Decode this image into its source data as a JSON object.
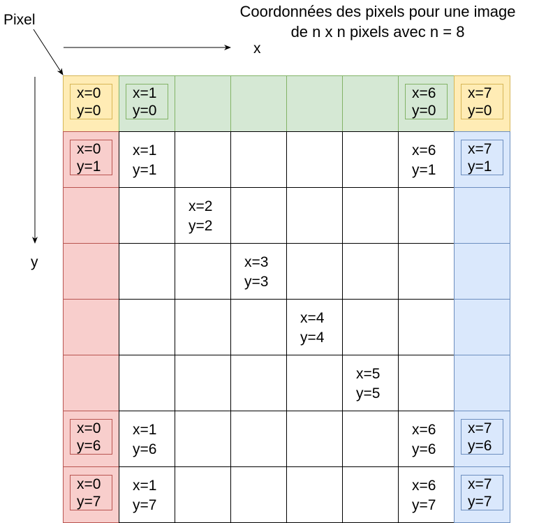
{
  "title": {
    "line1": "Coordonnées des pixels pour une image",
    "line2": "de n x n pixels avec n = 8"
  },
  "labels": {
    "pixel": "Pixel",
    "x_axis": "x",
    "y_axis": "y"
  },
  "grid": {
    "n": 8
  },
  "colors": {
    "top_corner_fill": "#ffecb5",
    "top_corner_stroke": "#d6b656",
    "top_row_fill": "#d5e8d4",
    "top_row_stroke": "#82b366",
    "left_column_fill": "#f8cecc",
    "left_column_stroke": "#b85450",
    "right_column_fill": "#dae8fc",
    "right_column_stroke": "#6c8ebf"
  },
  "cells": [
    {
      "col": 0,
      "row": 0,
      "x": "x=0",
      "y": "y=0",
      "boxed": true
    },
    {
      "col": 1,
      "row": 0,
      "x": "x=1",
      "y": "y=0",
      "boxed": true
    },
    {
      "col": 6,
      "row": 0,
      "x": "x=6",
      "y": "y=0",
      "boxed": true
    },
    {
      "col": 7,
      "row": 0,
      "x": "x=7",
      "y": "y=0",
      "boxed": true
    },
    {
      "col": 0,
      "row": 1,
      "x": "x=0",
      "y": "y=1",
      "boxed": true
    },
    {
      "col": 1,
      "row": 1,
      "x": "x=1",
      "y": "y=1",
      "boxed": false
    },
    {
      "col": 6,
      "row": 1,
      "x": "x=6",
      "y": "y=1",
      "boxed": false
    },
    {
      "col": 7,
      "row": 1,
      "x": "x=7",
      "y": "y=1",
      "boxed": true
    },
    {
      "col": 2,
      "row": 2,
      "x": "x=2",
      "y": "y=2",
      "boxed": false
    },
    {
      "col": 3,
      "row": 3,
      "x": "x=3",
      "y": "y=3",
      "boxed": false
    },
    {
      "col": 4,
      "row": 4,
      "x": "x=4",
      "y": "y=4",
      "boxed": false
    },
    {
      "col": 5,
      "row": 5,
      "x": "x=5",
      "y": "y=5",
      "boxed": false
    },
    {
      "col": 0,
      "row": 6,
      "x": "x=0",
      "y": "y=6",
      "boxed": true
    },
    {
      "col": 1,
      "row": 6,
      "x": "x=1",
      "y": "y=6",
      "boxed": false
    },
    {
      "col": 6,
      "row": 6,
      "x": "x=6",
      "y": "y=6",
      "boxed": false
    },
    {
      "col": 7,
      "row": 6,
      "x": "x=7",
      "y": "y=6",
      "boxed": true
    },
    {
      "col": 0,
      "row": 7,
      "x": "x=0",
      "y": "y=7",
      "boxed": true
    },
    {
      "col": 1,
      "row": 7,
      "x": "x=1",
      "y": "y=7",
      "boxed": false
    },
    {
      "col": 6,
      "row": 7,
      "x": "x=6",
      "y": "y=7",
      "boxed": false
    },
    {
      "col": 7,
      "row": 7,
      "x": "x=7",
      "y": "y=7",
      "boxed": true
    }
  ]
}
